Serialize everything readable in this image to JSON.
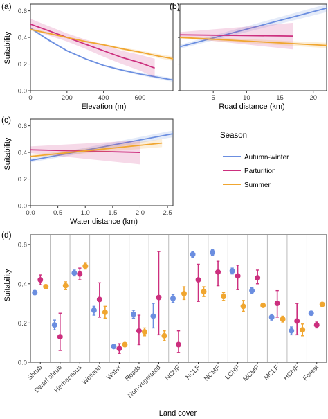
{
  "colors": {
    "autumn_winter": "#6b8ee0",
    "parturition": "#cc2f7e",
    "summer": "#f0a630",
    "panel_border": "#333333",
    "divider": "#bbbbbb"
  },
  "legend": {
    "title": "Season",
    "items": [
      {
        "label": "Autumn-winter",
        "color_key": "autumn_winter"
      },
      {
        "label": "Parturition",
        "color_key": "parturition"
      },
      {
        "label": "Summer",
        "color_key": "summer"
      }
    ]
  },
  "chart_data": [
    {
      "panel": "(a)",
      "type": "line",
      "xlabel": "Elevation (m)",
      "ylabel": "Suitability",
      "xlim": [
        0,
        780
      ],
      "ylim": [
        0,
        0.65
      ],
      "xticks": [
        0,
        200,
        400,
        600
      ],
      "yticks": [
        0.0,
        0.2,
        0.4,
        0.6
      ],
      "ytick_labels": [
        "0.0",
        "0.2",
        "0.4",
        "0.6"
      ],
      "series": [
        {
          "color_key": "autumn_winter",
          "x": [
            0,
            100,
            200,
            300,
            400,
            500,
            600,
            700,
            780
          ],
          "y": [
            0.47,
            0.38,
            0.3,
            0.24,
            0.19,
            0.155,
            0.125,
            0.1,
            0.08
          ],
          "ci_half": [
            0.01,
            0.008,
            0.006,
            0.006,
            0.006,
            0.008,
            0.01,
            0.012,
            0.014
          ]
        },
        {
          "color_key": "parturition",
          "x": [
            0,
            100,
            200,
            300,
            400,
            500,
            600,
            680
          ],
          "y": [
            0.5,
            0.45,
            0.4,
            0.35,
            0.3,
            0.25,
            0.21,
            0.17
          ],
          "ci_half": [
            0.04,
            0.035,
            0.03,
            0.035,
            0.045,
            0.05,
            0.06,
            0.07
          ]
        },
        {
          "color_key": "summer",
          "x": [
            0,
            100,
            200,
            300,
            400,
            500,
            600,
            700,
            780
          ],
          "y": [
            0.46,
            0.43,
            0.4,
            0.37,
            0.345,
            0.315,
            0.29,
            0.26,
            0.24
          ],
          "ci_half": [
            0.01,
            0.008,
            0.007,
            0.007,
            0.008,
            0.01,
            0.012,
            0.015,
            0.017
          ]
        }
      ]
    },
    {
      "panel": "(b)",
      "type": "line",
      "xlabel": "Road distance (km)",
      "ylabel": "",
      "xlim": [
        0,
        22
      ],
      "ylim": [
        0,
        0.65
      ],
      "xticks": [
        5,
        10,
        15,
        20
      ],
      "yticks": [
        0.0,
        0.2,
        0.4,
        0.6
      ],
      "series": [
        {
          "color_key": "autumn_winter",
          "x": [
            0,
            22
          ],
          "y": [
            0.33,
            0.62
          ],
          "ci_half": [
            0.015,
            0.03
          ]
        },
        {
          "color_key": "parturition",
          "x": [
            0,
            17
          ],
          "y": [
            0.42,
            0.41
          ],
          "ci_half": [
            0.02,
            0.1
          ]
        },
        {
          "color_key": "summer",
          "x": [
            0,
            22
          ],
          "y": [
            0.4,
            0.34
          ],
          "ci_half": [
            0.01,
            0.02
          ]
        }
      ]
    },
    {
      "panel": "(c)",
      "type": "line",
      "xlabel": "Water distance (km)",
      "ylabel": "Suitability",
      "xlim": [
        0,
        2.6
      ],
      "ylim": [
        0,
        0.65
      ],
      "xticks": [
        0.0,
        0.5,
        1.0,
        1.5,
        2.0,
        2.5
      ],
      "yticks": [
        0.0,
        0.2,
        0.4,
        0.6
      ],
      "xtick_labels": [
        "0.0",
        "0.5",
        "1.0",
        "1.5",
        "2.0",
        "2.5"
      ],
      "ytick_labels": [
        "0.0",
        "0.2",
        "0.4",
        "0.6"
      ],
      "series": [
        {
          "color_key": "autumn_winter",
          "x": [
            0,
            2.6
          ],
          "y": [
            0.34,
            0.54
          ],
          "ci_half": [
            0.015,
            0.025
          ]
        },
        {
          "color_key": "parturition",
          "x": [
            0,
            2.0
          ],
          "y": [
            0.42,
            0.4
          ],
          "ci_half": [
            0.025,
            0.09
          ]
        },
        {
          "color_key": "summer",
          "x": [
            0,
            2.4
          ],
          "y": [
            0.37,
            0.47
          ],
          "ci_half": [
            0.01,
            0.03
          ]
        }
      ]
    },
    {
      "panel": "(d)",
      "type": "scatter",
      "xlabel": "Land cover",
      "ylabel": "Suitability",
      "ylim": [
        0,
        0.65
      ],
      "yticks": [
        0.0,
        0.2,
        0.4,
        0.6
      ],
      "ytick_labels": [
        "0.0",
        "0.2",
        "0.4",
        "0.6"
      ],
      "categories": [
        "Shrub",
        "Dwarf shrub",
        "Herbaceous",
        "Wetland",
        "Water",
        "Roads",
        "Non-vegetated",
        "NCNF",
        "NCLF",
        "NCMF",
        "LCHF",
        "MCMF",
        "MCLF",
        "HCNF",
        "Forest"
      ],
      "series": [
        {
          "color_key": "autumn_winter",
          "y": [
            0.355,
            0.19,
            0.455,
            0.265,
            0.08,
            0.245,
            0.235,
            0.325,
            0.55,
            0.56,
            0.465,
            0.365,
            0.23,
            0.16,
            0.25
          ],
          "lo": [
            0.345,
            0.165,
            0.44,
            0.24,
            0.075,
            0.225,
            0.175,
            0.305,
            0.535,
            0.545,
            0.45,
            0.35,
            0.215,
            0.14,
            0.245
          ],
          "hi": [
            0.365,
            0.215,
            0.47,
            0.285,
            0.085,
            0.265,
            0.3,
            0.345,
            0.565,
            0.575,
            0.48,
            0.38,
            0.245,
            0.18,
            0.255
          ]
        },
        {
          "color_key": "parturition",
          "y": [
            0.42,
            0.13,
            0.45,
            0.32,
            0.07,
            0.16,
            0.33,
            0.09,
            0.42,
            0.46,
            0.44,
            0.43,
            0.3,
            0.21,
            0.19
          ],
          "lo": [
            0.395,
            0.06,
            0.42,
            0.23,
            0.045,
            0.09,
            0.14,
            0.05,
            0.31,
            0.39,
            0.37,
            0.4,
            0.23,
            0.14,
            0.175
          ],
          "hi": [
            0.445,
            0.25,
            0.48,
            0.405,
            0.095,
            0.24,
            0.565,
            0.16,
            0.5,
            0.515,
            0.495,
            0.47,
            0.365,
            0.3,
            0.205
          ]
        },
        {
          "color_key": "summer",
          "y": [
            0.385,
            0.39,
            0.49,
            0.255,
            0.09,
            0.155,
            0.135,
            0.35,
            0.36,
            0.335,
            0.285,
            0.29,
            0.22,
            0.165,
            0.295
          ],
          "lo": [
            0.38,
            0.37,
            0.475,
            0.225,
            0.08,
            0.135,
            0.11,
            0.32,
            0.335,
            0.315,
            0.26,
            0.28,
            0.205,
            0.135,
            0.29
          ],
          "hi": [
            0.39,
            0.41,
            0.505,
            0.285,
            0.1,
            0.175,
            0.16,
            0.385,
            0.385,
            0.355,
            0.315,
            0.3,
            0.235,
            0.195,
            0.3
          ]
        }
      ]
    }
  ]
}
